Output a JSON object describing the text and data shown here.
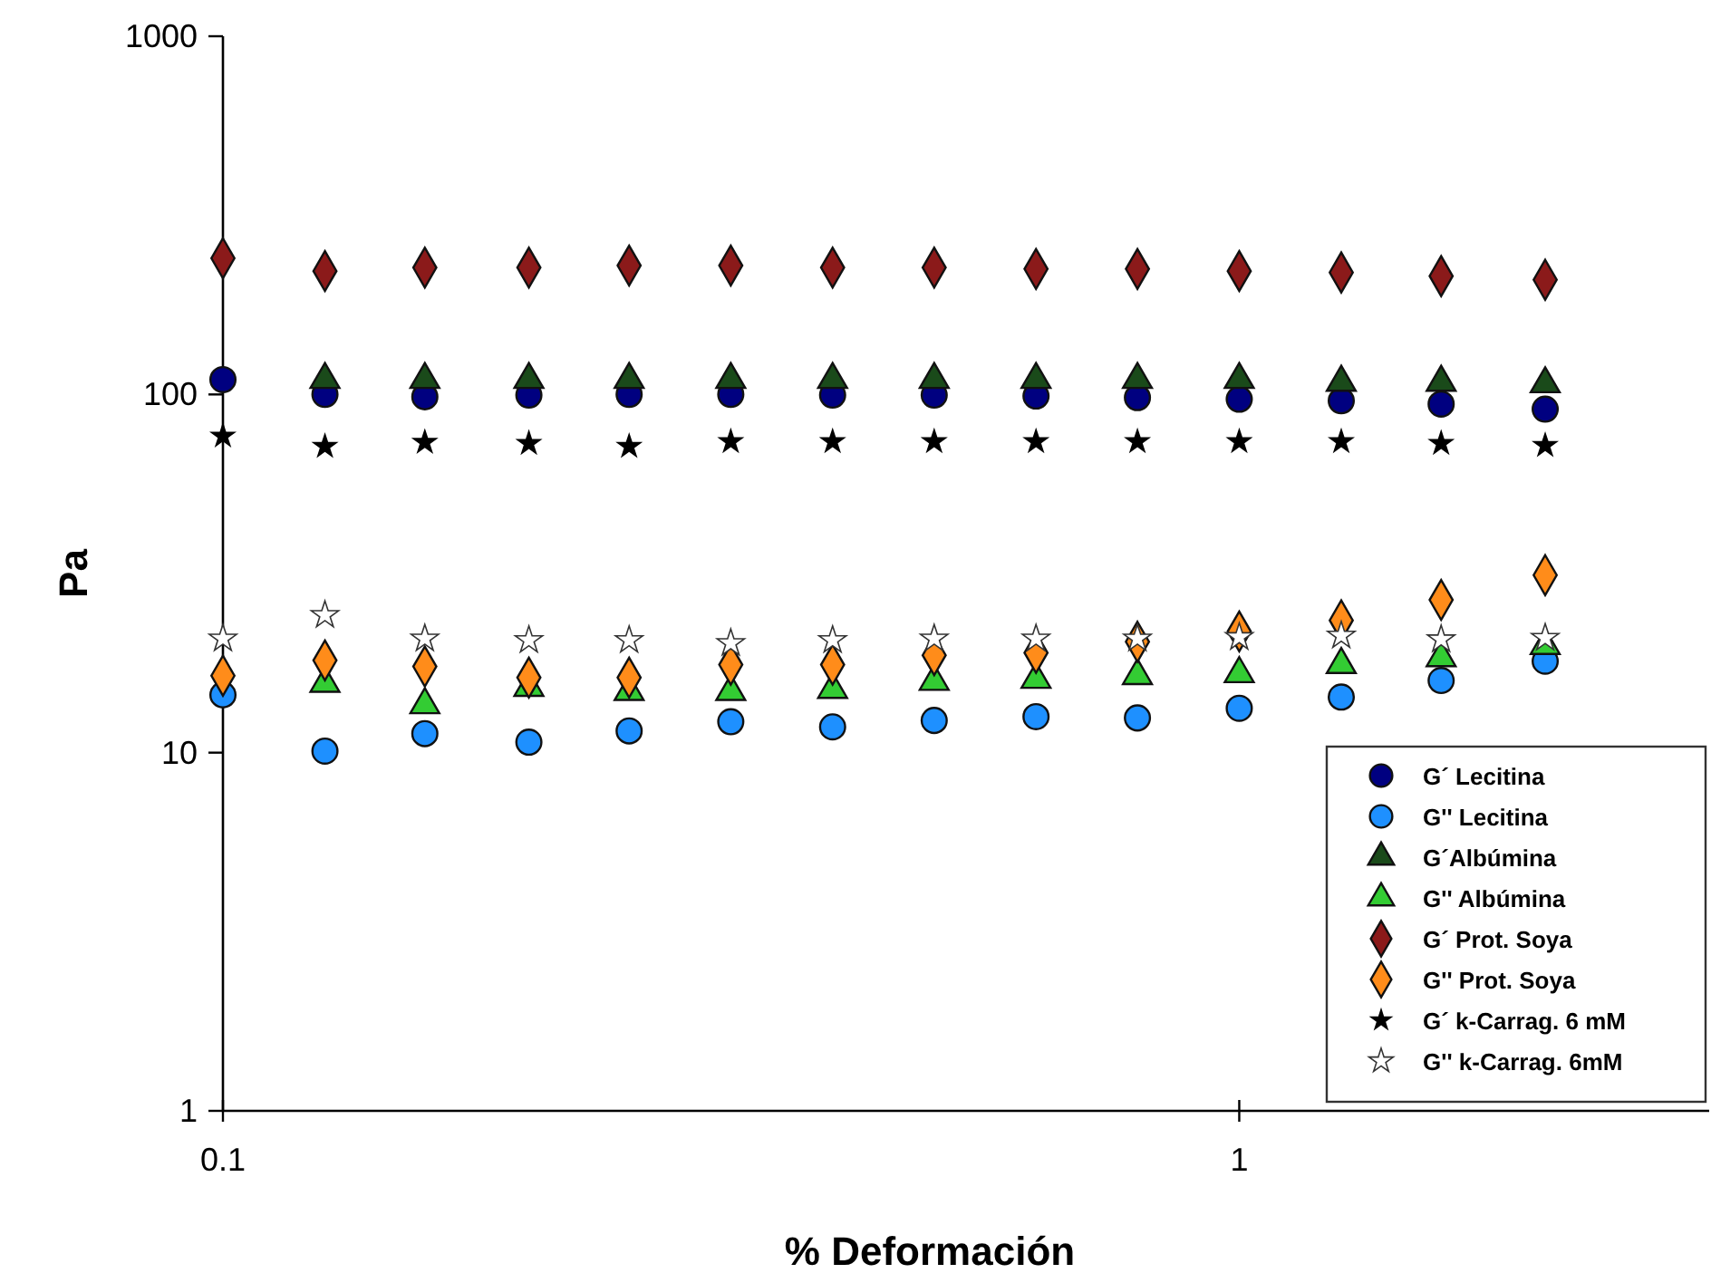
{
  "chart_data": {
    "type": "scatter",
    "xlabel": "% Deformación",
    "ylabel": "Pa",
    "log": "xy",
    "grid": false,
    "legend": "bottom right",
    "xlim": [
      0.1,
      2.9
    ],
    "xticks": [
      0.1,
      1
    ],
    "ylim": [
      1,
      1000
    ],
    "yticks": [
      1,
      10,
      100,
      1000
    ],
    "x": [
      0.1,
      0.126,
      0.158,
      0.2,
      0.251,
      0.316,
      0.398,
      0.501,
      0.631,
      0.794,
      1.0,
      1.26,
      1.58,
      2.0
    ],
    "series": [
      {
        "name": "G´ Lecitina",
        "color": "#000080",
        "marker": "circle",
        "values": [
          110,
          100,
          98.5,
          99.6,
          100,
          100,
          99.6,
          99.6,
          99,
          98,
          97,
          96,
          94,
          91
        ]
      },
      {
        "name": "G'' Lecitina",
        "color": "#1e90ff",
        "marker": "circle",
        "values": [
          14.5,
          10.1,
          11.3,
          10.7,
          11.5,
          12.2,
          11.8,
          12.3,
          12.6,
          12.5,
          13.3,
          14.3,
          15.9,
          18
        ]
      },
      {
        "name": "G´Albúmina",
        "color": "#1a4a1a",
        "marker": "triangle",
        "values": [
          null,
          110,
          110,
          110,
          110,
          110,
          110,
          110,
          110,
          110,
          110,
          108,
          108,
          107
        ]
      },
      {
        "name": "G'' Albúmina",
        "color": "#33cc33",
        "marker": "triangle",
        "values": [
          null,
          15.6,
          13.6,
          15.2,
          14.8,
          14.8,
          15,
          15.8,
          16,
          16.4,
          16.6,
          17.6,
          18.4,
          19.9
        ]
      },
      {
        "name": "G´ Prot. Soya",
        "color": "#8b1a1a",
        "marker": "diamond",
        "values": [
          240,
          221,
          226,
          226,
          229,
          229,
          226,
          226,
          224,
          224,
          221,
          219,
          214,
          209
        ]
      },
      {
        "name": "G'' Prot. Soya",
        "color": "#ff8c1a",
        "marker": "diamond",
        "values": [
          16.4,
          18.1,
          17.4,
          16.2,
          16.2,
          17.6,
          17.6,
          18.7,
          19,
          20.4,
          21.8,
          23.4,
          26.7,
          31.3
        ]
      },
      {
        "name": "G´ k-Carrag. 6 mM",
        "color": "#000000",
        "marker": "star",
        "values": [
          76.5,
          71.6,
          73.5,
          73,
          71.6,
          73.8,
          73.8,
          73.8,
          73.8,
          73.8,
          73.8,
          73.8,
          73,
          72
        ]
      },
      {
        "name": "G'' k-Carrag. 6mM",
        "color": "#ffffff",
        "marker": "star",
        "values": [
          20.8,
          24.2,
          20.8,
          20.6,
          20.6,
          20.2,
          20.6,
          20.8,
          20.8,
          20.8,
          21,
          21.2,
          20.7,
          20.9
        ]
      }
    ]
  }
}
